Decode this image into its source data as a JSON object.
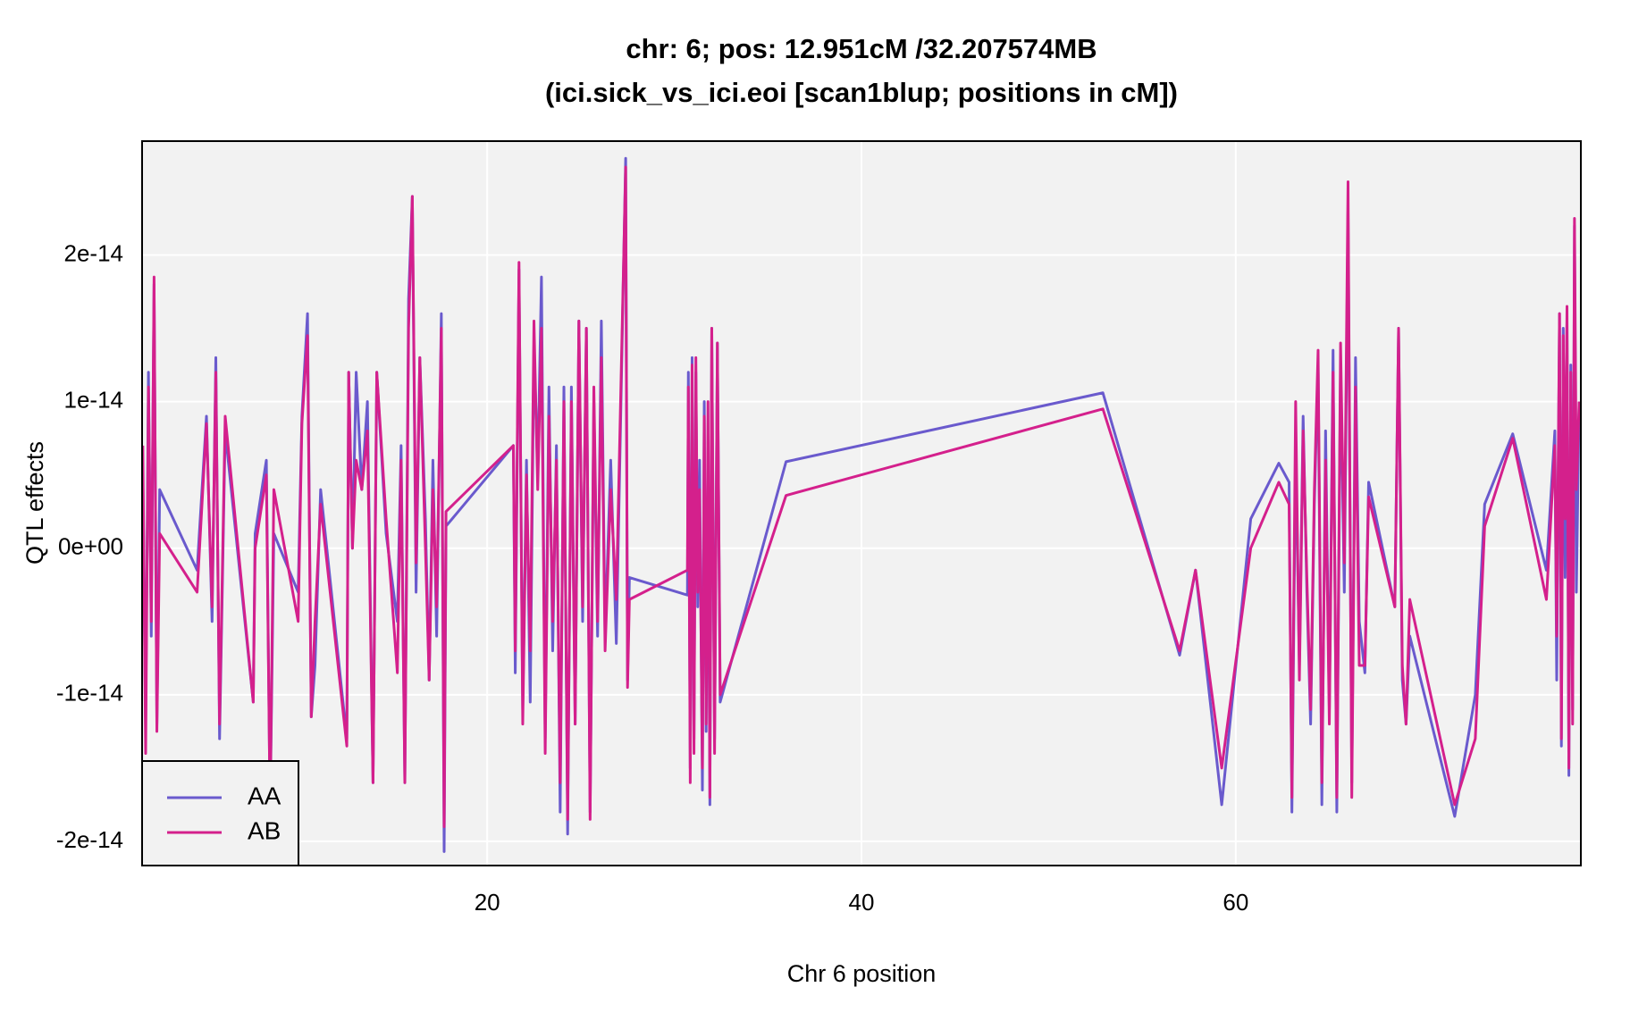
{
  "chart_data": {
    "type": "line",
    "title": "chr: 6; pos: 12.951cM /32.207574MB",
    "subtitle": "(ici.sick_vs_ici.eoi [scan1blup; positions in cM])",
    "xlabel": "Chr 6 position",
    "ylabel": "QTL effects",
    "xlim": [
      1.56,
      78.44
    ],
    "ylim": [
      -2.165e-14,
      2.777e-14
    ],
    "xticks": [
      20,
      40,
      60
    ],
    "yticks": [
      {
        "value": -2e-14,
        "label": "-2e-14"
      },
      {
        "value": -1e-14,
        "label": "-1e-14"
      },
      {
        "value": 0,
        "label": "0e+00"
      },
      {
        "value": 1e-14,
        "label": "1e-14"
      },
      {
        "value": 2e-14,
        "label": "2e-14"
      }
    ],
    "grid": true,
    "legend": "bottom-left",
    "x": [
      1.6,
      1.75,
      1.9,
      2.05,
      2.2,
      2.35,
      2.5,
      4.5,
      5.0,
      5.3,
      5.5,
      5.7,
      6.0,
      7.5,
      7.6,
      8.2,
      8.4,
      8.6,
      9.9,
      10.1,
      10.4,
      10.6,
      10.8,
      11.1,
      12.5,
      12.6,
      12.8,
      13.0,
      13.3,
      13.6,
      13.9,
      14.1,
      14.6,
      15.2,
      15.4,
      15.6,
      15.8,
      16.0,
      16.2,
      16.4,
      16.7,
      16.9,
      17.1,
      17.3,
      17.55,
      17.7,
      17.8,
      21.4,
      21.5,
      21.7,
      21.9,
      22.1,
      22.3,
      22.5,
      22.7,
      22.9,
      23.1,
      23.3,
      23.5,
      23.7,
      23.9,
      24.1,
      24.3,
      24.5,
      24.7,
      24.9,
      25.1,
      25.3,
      25.5,
      25.7,
      25.9,
      26.1,
      26.3,
      26.6,
      26.9,
      27.4,
      27.5,
      27.6,
      30.7,
      30.75,
      30.85,
      30.95,
      31.05,
      31.15,
      31.25,
      31.35,
      31.5,
      31.6,
      31.7,
      31.8,
      31.9,
      32.0,
      32.15,
      32.3,
      32.45,
      35.97,
      52.9,
      57.0,
      57.85,
      59.25,
      60.8,
      62.3,
      62.85,
      63.0,
      63.2,
      63.4,
      63.6,
      63.8,
      64.0,
      64.2,
      64.4,
      64.6,
      64.8,
      65.0,
      65.2,
      65.4,
      65.6,
      65.8,
      66.0,
      66.2,
      66.4,
      66.6,
      66.9,
      67.1,
      68.5,
      68.7,
      68.9,
      69.1,
      69.3,
      71.7,
      72.8,
      73.3,
      74.8,
      76.6,
      77.05,
      77.15,
      77.3,
      77.4,
      77.5,
      77.6,
      77.7,
      77.8,
      77.9,
      78.0,
      78.1,
      78.2,
      78.35
    ],
    "series": [
      {
        "name": "AA",
        "color": "#6a5acd",
        "values": [
          5e-15,
          -1.2e-14,
          1.2e-14,
          -6e-15,
          1.8e-14,
          -1.2e-14,
          4e-15,
          -1.5e-15,
          9e-15,
          -5e-15,
          1.3e-14,
          -1.3e-14,
          8e-15,
          -1.05e-14,
          1e-15,
          6e-15,
          -1.8e-14,
          1e-15,
          -3e-15,
          9e-15,
          1.6e-14,
          -1.15e-14,
          -8e-15,
          4e-15,
          -1.3e-14,
          1.2e-14,
          0,
          1.2e-14,
          4e-15,
          1e-14,
          -1.6e-14,
          1.2e-14,
          1e-15,
          -5e-15,
          7e-15,
          -1.6e-14,
          1.7e-14,
          2.4e-14,
          -3e-15,
          1.3e-14,
          2e-15,
          -9e-15,
          6e-15,
          -6e-15,
          1.6e-14,
          -2.07e-14,
          1.5e-15,
          7e-15,
          -8.5e-15,
          1.9e-14,
          -1.1e-14,
          6e-15,
          -1.05e-14,
          1.4e-14,
          5e-15,
          1.85e-14,
          -1.3e-14,
          1.1e-14,
          -7e-15,
          7e-15,
          -1.8e-14,
          1.1e-14,
          -1.95e-14,
          1.1e-14,
          -1.2e-14,
          1.55e-14,
          -5e-15,
          1.5e-14,
          -1.8e-14,
          1e-14,
          -6e-15,
          1.55e-14,
          -6e-15,
          6e-15,
          -6.5e-15,
          2.66e-14,
          -9e-15,
          -2e-15,
          -3.2e-15,
          1.2e-14,
          -1.5e-14,
          1.3e-14,
          -1.3e-14,
          1.2e-14,
          -4e-15,
          6e-15,
          -1.65e-14,
          1e-14,
          -1.25e-14,
          7e-15,
          -1.75e-14,
          1.5e-14,
          -1.3e-14,
          1.4e-14,
          -1.05e-14,
          5.9e-15,
          1.06e-14,
          -7.3e-15,
          -1.5e-15,
          -1.75e-14,
          2e-15,
          5.8e-15,
          4.5e-15,
          -1.8e-14,
          7e-15,
          -8e-15,
          9e-15,
          -3e-15,
          -1.2e-14,
          3e-15,
          1.25e-14,
          -1.75e-14,
          8e-15,
          -1.1e-14,
          1.35e-14,
          -1.8e-14,
          1.25e-14,
          -3e-15,
          2.3e-14,
          -1.6e-14,
          1.3e-14,
          -5e-15,
          -8.5e-15,
          4.5e-15,
          -4e-15,
          1.5e-14,
          -9e-15,
          -1.2e-14,
          -6e-15,
          -1.83e-14,
          -1e-14,
          3e-15,
          7.8e-15,
          -1.5e-15,
          8e-15,
          -9e-15,
          1.6e-14,
          -1.35e-14,
          1.5e-14,
          -2e-15,
          1.55e-14,
          -1.55e-14,
          1.25e-14,
          -1.1e-14,
          2.2e-14,
          -3e-15,
          1e-14
        ]
      },
      {
        "name": "AB",
        "color": "#d4208c",
        "values": [
          7e-15,
          -1.4e-14,
          1.1e-14,
          -5e-15,
          1.85e-14,
          -1.25e-14,
          1e-15,
          -3e-15,
          8.5e-15,
          -4e-15,
          1.2e-14,
          -1.2e-14,
          9e-15,
          -1.05e-14,
          0,
          5e-15,
          -1.8e-14,
          4e-15,
          -5e-15,
          8.5e-15,
          1.45e-14,
          -1.15e-14,
          -5e-15,
          3e-15,
          -1.35e-14,
          1.2e-14,
          0,
          6e-15,
          4e-15,
          8e-15,
          -1.6e-14,
          1.2e-14,
          2e-15,
          -8.5e-15,
          6e-15,
          -1.6e-14,
          1.5e-14,
          2.4e-14,
          -1e-15,
          1.3e-14,
          0,
          -9e-15,
          4e-15,
          -4e-15,
          1.5e-14,
          -1.9e-14,
          2.5e-15,
          7e-15,
          -7e-15,
          1.95e-14,
          -1.2e-14,
          5e-15,
          -7e-15,
          1.55e-14,
          4e-15,
          1.5e-14,
          -1.4e-14,
          9e-15,
          -5e-15,
          6e-15,
          -1.6e-14,
          1e-14,
          -1.85e-14,
          1e-14,
          -1.2e-14,
          1.55e-14,
          -4e-15,
          1.5e-14,
          -1.85e-14,
          1.1e-14,
          -5e-15,
          1.3e-14,
          -7e-15,
          4e-15,
          -3.5e-15,
          2.6e-14,
          -9.5e-15,
          -3.5e-15,
          -1.5e-15,
          1.1e-14,
          -1.6e-14,
          1.25e-14,
          -1.4e-14,
          1.3e-14,
          -3e-15,
          4e-15,
          -1.5e-14,
          9e-15,
          -1.2e-14,
          1e-14,
          -1.7e-14,
          1.5e-14,
          -1.4e-14,
          1.4e-14,
          -1e-14,
          3.6e-15,
          9.5e-15,
          -7e-15,
          -1.5e-15,
          -1.5e-14,
          0,
          4.5e-15,
          3e-15,
          -1.7e-14,
          1e-14,
          -9e-15,
          8e-15,
          -2e-15,
          -1.1e-14,
          4e-15,
          1.35e-14,
          -1.6e-14,
          6e-15,
          -1.2e-14,
          1.2e-14,
          -1.7e-14,
          1.4e-14,
          -1e-15,
          2.5e-14,
          -1.7e-14,
          1.1e-14,
          -8e-15,
          -8e-15,
          3.5e-15,
          -4e-15,
          1.5e-14,
          -8e-15,
          -1.2e-14,
          -3.5e-15,
          -1.75e-14,
          -1.3e-14,
          1.5e-15,
          7.5e-15,
          -3.5e-15,
          7e-15,
          -6e-15,
          1.6e-14,
          -1.3e-14,
          1.45e-14,
          2e-15,
          1.65e-14,
          -1.5e-14,
          1.2e-14,
          -1.2e-14,
          2.25e-14,
          4e-15,
          1e-14
        ]
      }
    ]
  }
}
